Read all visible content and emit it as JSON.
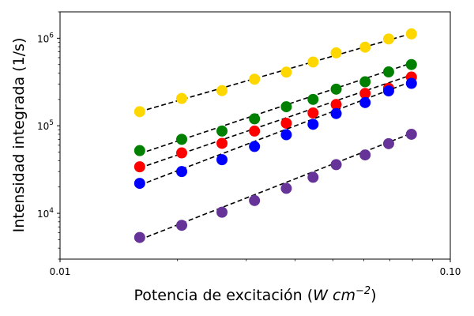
{
  "chart_data": {
    "type": "scatter",
    "xlabel": "Potencia de excitación (",
    "xlabel_math_base": "W cm",
    "xlabel_math_exp": "−2",
    "xlabel_close": ")",
    "ylabel": "Intensidad integrada (1/s)",
    "x_scale": "log",
    "y_scale": "log",
    "xlim": [
      0.01,
      0.1
    ],
    "ylim": [
      3000,
      2000000
    ],
    "x_ticks": [
      {
        "value": 0.01,
        "label": "0.01"
      },
      {
        "value": 0.1,
        "label": "0.10"
      }
    ],
    "y_ticks": [
      {
        "value": 10000,
        "base": "10",
        "exp": "4"
      },
      {
        "value": 100000,
        "base": "10",
        "exp": "5"
      },
      {
        "value": 1000000,
        "base": "10",
        "exp": "6"
      }
    ],
    "grid": false,
    "fit_lines": "dashed black",
    "x": [
      0.016,
      0.0205,
      0.026,
      0.0315,
      0.038,
      0.0445,
      0.051,
      0.0605,
      0.0695,
      0.0795
    ],
    "series": [
      {
        "color": "#ffd700",
        "values": [
          145000,
          205000,
          252000,
          340000,
          410000,
          535000,
          680000,
          790000,
          980000,
          1120000
        ],
        "fit": [
          145000,
          1130000
        ]
      },
      {
        "color": "#008000",
        "values": [
          52000,
          70000,
          87000,
          120000,
          165000,
          200000,
          262000,
          318000,
          412000,
          500000
        ],
        "fit": [
          48000,
          520000
        ]
      },
      {
        "color": "#ff0000",
        "values": [
          34000,
          49000,
          63000,
          87000,
          107000,
          140000,
          175000,
          234000,
          268000,
          360000
        ],
        "fit": [
          33000,
          380000
        ]
      },
      {
        "color": "#0000ff",
        "values": [
          22000,
          30000,
          41000,
          58000,
          79000,
          104000,
          138000,
          184000,
          250000,
          305000
        ],
        "fit": [
          21000,
          320000
        ]
      },
      {
        "color": "#663399",
        "values": [
          5300,
          7300,
          10300,
          14000,
          19300,
          25800,
          36000,
          46500,
          62500,
          80000
        ],
        "fit": [
          5000,
          82000
        ]
      }
    ]
  }
}
